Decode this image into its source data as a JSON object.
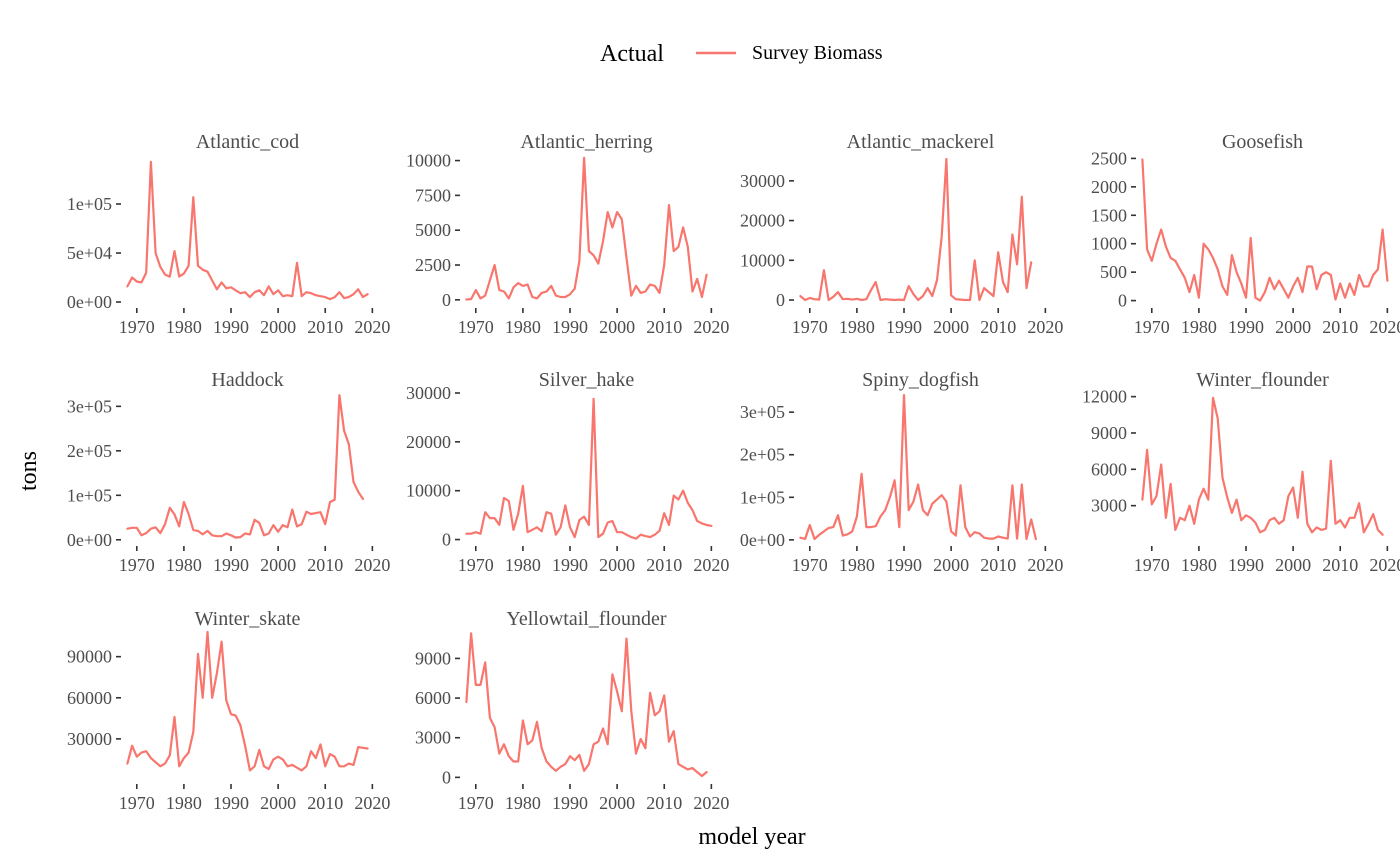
{
  "chart_data": {
    "type": "line",
    "xlabel": "model year",
    "ylabel": "tons",
    "legend": {
      "title": "Actual",
      "placement": "top",
      "entries": [
        {
          "label": "Survey Biomass",
          "color": "#f8766d"
        }
      ]
    },
    "x_ticks": [
      1970,
      1980,
      1990,
      2000,
      2010,
      2020
    ],
    "grid": false,
    "start_year": 1968,
    "series_color": "#f8766d",
    "panels": [
      {
        "name": "Atlantic_cod",
        "ylim": [
          -2000,
          150000
        ],
        "y_ticks": [
          0,
          50000,
          100000
        ],
        "y_tick_labels": [
          "0e+00",
          "5e+04",
          "1e+05"
        ],
        "values": [
          16000,
          25000,
          21000,
          20000,
          30000,
          143000,
          50000,
          36000,
          28000,
          26000,
          52000,
          26000,
          29000,
          37000,
          107000,
          37000,
          33000,
          31000,
          22000,
          13000,
          20000,
          14000,
          15000,
          12000,
          9000,
          10000,
          5000,
          10000,
          12000,
          7000,
          16000,
          8000,
          12000,
          6000,
          7000,
          6000,
          40000,
          6000,
          10000,
          9000,
          7000,
          6000,
          5000,
          3000,
          5000,
          10000,
          4000,
          5000,
          8000,
          13000,
          5000,
          8000
        ]
      },
      {
        "name": "Atlantic_herring",
        "ylim": [
          -300,
          10400
        ],
        "y_ticks": [
          0,
          2500,
          5000,
          7500,
          10000
        ],
        "y_tick_labels": [
          "0",
          "2500",
          "5000",
          "7500",
          "10000"
        ],
        "values": [
          20,
          50,
          700,
          100,
          300,
          1400,
          2500,
          700,
          600,
          100,
          900,
          1200,
          1000,
          1100,
          200,
          100,
          500,
          600,
          1000,
          300,
          200,
          200,
          400,
          800,
          2800,
          10200,
          3500,
          3200,
          2600,
          4200,
          6300,
          5200,
          6300,
          5800,
          3000,
          300,
          1000,
          500,
          600,
          1100,
          1000,
          500,
          2500,
          6800,
          3500,
          3800,
          5200,
          3800,
          600,
          1500,
          200,
          1800
        ]
      },
      {
        "name": "Atlantic_mackerel",
        "ylim": [
          -1000,
          36500
        ],
        "y_ticks": [
          0,
          10000,
          20000,
          30000
        ],
        "y_tick_labels": [
          "0",
          "10000",
          "20000",
          "30000"
        ],
        "values": [
          1000,
          0,
          500,
          200,
          100,
          7500,
          0,
          800,
          2000,
          200,
          300,
          100,
          300,
          0,
          200,
          2500,
          4500,
          0,
          200,
          100,
          0,
          100,
          0,
          3500,
          1500,
          0,
          1000,
          3000,
          1000,
          5000,
          16000,
          35500,
          1200,
          200,
          100,
          0,
          0,
          10000,
          0,
          3000,
          2000,
          1000,
          12000,
          4500,
          2000,
          16500,
          9000,
          26000,
          3000,
          9500
        ]
      },
      {
        "name": "Goosefish",
        "ylim": [
          -60,
          2560
        ],
        "y_ticks": [
          0,
          500,
          1000,
          1500,
          2000,
          2500
        ],
        "y_tick_labels": [
          "0",
          "500",
          "1000",
          "1500",
          "2000",
          "2500"
        ],
        "values": [
          2480,
          900,
          700,
          1000,
          1250,
          950,
          750,
          700,
          550,
          400,
          150,
          450,
          50,
          1000,
          900,
          750,
          550,
          250,
          100,
          800,
          500,
          300,
          50,
          1100,
          50,
          0,
          150,
          400,
          200,
          350,
          200,
          50,
          250,
          400,
          150,
          600,
          600,
          200,
          450,
          500,
          450,
          20,
          300,
          50,
          300,
          100,
          450,
          250,
          250,
          450,
          550,
          1250,
          350
        ]
      },
      {
        "name": "Haddock",
        "ylim": [
          -5000,
          330000
        ],
        "y_ticks": [
          0,
          100000,
          200000,
          300000
        ],
        "y_tick_labels": [
          "0e+00",
          "1e+05",
          "2e+05",
          "3e+05"
        ],
        "values": [
          25000,
          27000,
          27000,
          10000,
          15000,
          25000,
          28000,
          15000,
          35000,
          72000,
          57000,
          30000,
          85000,
          58000,
          22000,
          20000,
          12000,
          20000,
          10000,
          8000,
          8000,
          14000,
          10000,
          5000,
          6000,
          14000,
          12000,
          45000,
          38000,
          10000,
          14000,
          33000,
          18000,
          33000,
          28000,
          68000,
          30000,
          35000,
          63000,
          58000,
          60000,
          62000,
          35000,
          85000,
          90000,
          325000,
          245000,
          215000,
          130000,
          108000,
          92000
        ]
      },
      {
        "name": "Silver_hake",
        "ylim": [
          -500,
          30000
        ],
        "y_ticks": [
          0,
          10000,
          20000,
          30000
        ],
        "y_tick_labels": [
          "0",
          "10000",
          "20000",
          "30000"
        ],
        "values": [
          1200,
          1200,
          1500,
          1200,
          5600,
          4400,
          4400,
          3000,
          8500,
          7900,
          2000,
          5300,
          11000,
          1500,
          2000,
          2500,
          1700,
          5600,
          5300,
          1000,
          2500,
          7000,
          2500,
          500,
          4000,
          4700,
          3000,
          28800,
          500,
          1200,
          3500,
          3800,
          1500,
          1500,
          1000,
          500,
          200,
          1000,
          700,
          500,
          1000,
          1800,
          5400,
          3000,
          9000,
          8200,
          10000,
          7500,
          6000,
          3800,
          3300,
          3000,
          2800
        ]
      },
      {
        "name": "Spiny_dogfish",
        "ylim": [
          -5000,
          345000
        ],
        "y_ticks": [
          0,
          100000,
          200000,
          300000
        ],
        "y_tick_labels": [
          "0e+00",
          "1e+05",
          "2e+05",
          "3e+05"
        ],
        "values": [
          5000,
          2000,
          35000,
          2000,
          12000,
          20000,
          28000,
          30000,
          58000,
          10000,
          13000,
          20000,
          55000,
          155000,
          30000,
          30000,
          32000,
          55000,
          70000,
          100000,
          140000,
          30000,
          340000,
          70000,
          90000,
          130000,
          70000,
          58000,
          85000,
          95000,
          105000,
          90000,
          20000,
          10000,
          128000,
          30000,
          8000,
          18000,
          15000,
          5000,
          3000,
          3000,
          8000,
          5000,
          3000,
          128000,
          3000,
          130000,
          2000,
          48000,
          2000
        ]
      },
      {
        "name": "Winter_flounder",
        "ylim": [
          0,
          12300
        ],
        "y_ticks": [
          3000,
          6000,
          9000,
          12000
        ],
        "y_tick_labels": [
          "3000",
          "6000",
          "9000",
          "12000"
        ],
        "values": [
          3500,
          7600,
          3100,
          3800,
          6400,
          2000,
          4800,
          1000,
          2000,
          1800,
          3000,
          1500,
          3500,
          4400,
          3500,
          11900,
          10200,
          5300,
          3700,
          2400,
          3500,
          1800,
          2200,
          2000,
          1600,
          800,
          1000,
          1800,
          2000,
          1500,
          1800,
          3800,
          4500,
          2000,
          5800,
          1500,
          800,
          1200,
          1000,
          1100,
          6700,
          1500,
          1800,
          1200,
          2000,
          2000,
          3200,
          800,
          1500,
          2300,
          1000,
          600
        ]
      },
      {
        "name": "Winter_skate",
        "ylim": [
          0,
          108000
        ],
        "y_ticks": [
          30000,
          60000,
          90000
        ],
        "y_tick_labels": [
          "30000",
          "60000",
          "90000"
        ],
        "values": [
          12000,
          25000,
          17000,
          20000,
          21000,
          16000,
          13000,
          10000,
          12000,
          18000,
          46000,
          10000,
          16000,
          20000,
          35000,
          92000,
          60000,
          108000,
          60000,
          78000,
          101000,
          58000,
          48000,
          47000,
          40000,
          25000,
          7000,
          10000,
          22000,
          10000,
          8000,
          15000,
          17000,
          15000,
          10000,
          11000,
          9000,
          7000,
          10000,
          21000,
          16000,
          26000,
          10000,
          19000,
          17000,
          10000,
          10000,
          12000,
          11000,
          24000,
          23500,
          23000
        ]
      },
      {
        "name": "Yellowtail_flounder",
        "ylim": [
          -200,
          11000
        ],
        "y_ticks": [
          0,
          3000,
          6000,
          9000
        ],
        "y_tick_labels": [
          "0",
          "3000",
          "6000",
          "9000"
        ],
        "values": [
          5700,
          10900,
          7000,
          7000,
          8700,
          4500,
          3800,
          1800,
          2500,
          1600,
          1200,
          1200,
          4300,
          2500,
          2800,
          4200,
          2200,
          1200,
          800,
          500,
          800,
          1000,
          1600,
          1300,
          1700,
          500,
          1000,
          2500,
          2700,
          3700,
          2500,
          7800,
          6500,
          5000,
          10500,
          5000,
          1800,
          2900,
          2200,
          6400,
          4700,
          5000,
          6200,
          2700,
          3500,
          1000,
          800,
          600,
          700,
          400,
          100,
          400
        ]
      }
    ]
  }
}
